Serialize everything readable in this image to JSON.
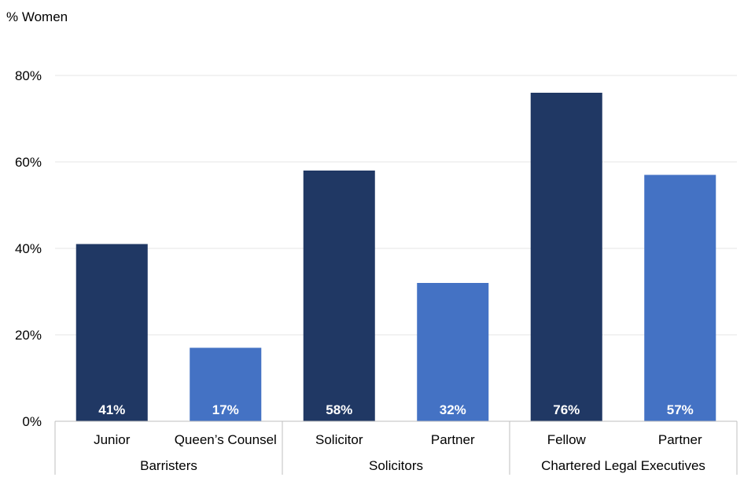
{
  "chart_data": {
    "type": "bar",
    "ylabel": "% Women",
    "ylim": [
      0,
      80
    ],
    "yticks": [
      0,
      20,
      40,
      60,
      80
    ],
    "ytick_labels": [
      "0%",
      "20%",
      "40%",
      "60%",
      "80%"
    ],
    "grid": true,
    "groups": [
      {
        "label": "Barristers",
        "categories": [
          "Junior",
          "Queen’s Counsel"
        ]
      },
      {
        "label": "Solicitors",
        "categories": [
          "Solicitor",
          "Partner"
        ]
      },
      {
        "label": "Chartered Legal Executives",
        "categories": [
          "Fellow",
          "Partner"
        ]
      }
    ],
    "categories": [
      "Junior",
      "Queen’s Counsel",
      "Solicitor",
      "Partner",
      "Fellow",
      "Partner"
    ],
    "values": [
      41,
      17,
      58,
      32,
      76,
      57
    ],
    "data_labels": [
      "41%",
      "17%",
      "58%",
      "32%",
      "76%",
      "57%"
    ],
    "colors": [
      "#203864",
      "#4472C4",
      "#203864",
      "#4472C4",
      "#203864",
      "#4472C4"
    ],
    "label_color": "#ffffff",
    "grid_color": "#e6e6e6",
    "axis_color": "#bfbfbf",
    "text_color": "#000000"
  }
}
